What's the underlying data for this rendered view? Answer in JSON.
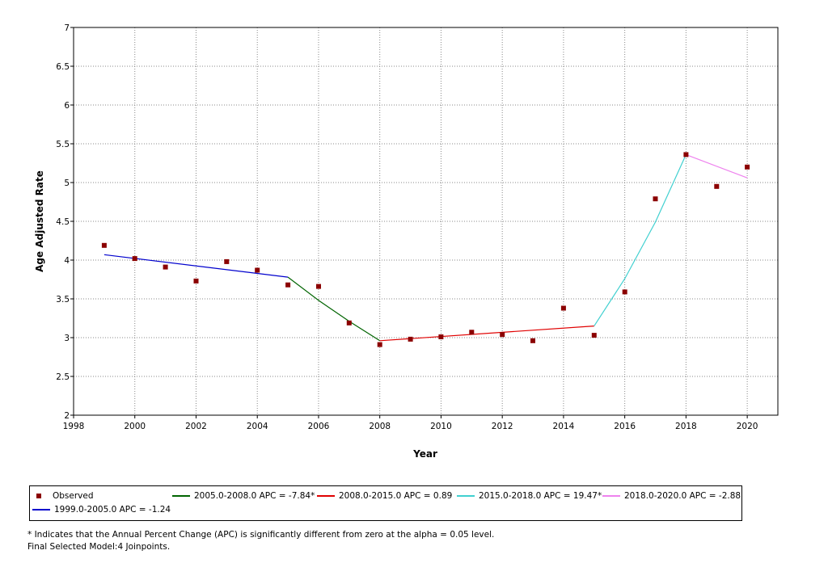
{
  "chart_data": {
    "type": "scatter+line",
    "xlabel": "Year",
    "ylabel": "Age Adjusted Rate",
    "xlim": [
      1998,
      2021
    ],
    "ylim": [
      2,
      7
    ],
    "xticks": [
      1998,
      2000,
      2002,
      2004,
      2006,
      2008,
      2010,
      2012,
      2014,
      2016,
      2018,
      2020
    ],
    "yticks": [
      2,
      2.5,
      3,
      3.5,
      4,
      4.5,
      5,
      5.5,
      6,
      6.5,
      7
    ],
    "observed": {
      "name": "Observed",
      "color": "#8b0000",
      "x": [
        1999,
        2000,
        2001,
        2002,
        2003,
        2004,
        2005,
        2006,
        2007,
        2008,
        2009,
        2010,
        2011,
        2012,
        2013,
        2014,
        2015,
        2016,
        2017,
        2018,
        2019,
        2020
      ],
      "y": [
        4.19,
        4.02,
        3.91,
        3.73,
        3.98,
        3.87,
        3.68,
        3.66,
        3.19,
        2.91,
        2.98,
        3.01,
        3.07,
        3.04,
        2.96,
        3.38,
        3.03,
        3.59,
        4.79,
        5.36,
        4.95,
        5.2
      ]
    },
    "segments": [
      {
        "name": "1999.0-2005.0 APC  =  -1.24",
        "color": "#0000cd",
        "x": [
          1999,
          2005
        ],
        "y": [
          4.07,
          3.78
        ]
      },
      {
        "name": "2005.0-2008.0 APC  =  -7.84*",
        "color": "#006400",
        "x": [
          2005,
          2006,
          2007,
          2008
        ],
        "y": [
          3.78,
          3.48,
          3.21,
          2.96
        ]
      },
      {
        "name": "2008.0-2015.0 APC  =  0.89",
        "color": "#e00000",
        "x": [
          2008,
          2015
        ],
        "y": [
          2.96,
          3.15
        ]
      },
      {
        "name": "2015.0-2018.0 APC  =  19.47*",
        "color": "#40d0d0",
        "x": [
          2015,
          2016,
          2017,
          2018
        ],
        "y": [
          3.15,
          3.76,
          4.49,
          5.36
        ]
      },
      {
        "name": "2018.0-2020.0 APC  =  -2.88",
        "color": "#ee82ee",
        "x": [
          2018,
          2020
        ],
        "y": [
          5.36,
          5.06
        ]
      }
    ]
  },
  "legend": {
    "observed_label": "Observed",
    "seg1_label": "2005.0-2008.0 APC  =  -7.84*",
    "seg2_label": "2008.0-2015.0 APC  =  0.89",
    "seg3_label": "2015.0-2018.0 APC  =  19.47*",
    "seg4_label": "2018.0-2020.0 APC  =  -2.88",
    "seg0_label": "1999.0-2005.0 APC  =  -1.24"
  },
  "notes": {
    "significance": "* Indicates that the Annual Percent Change (APC) is significantly different from zero at the alpha = 0.05 level.",
    "model": "Final Selected Model:4 Joinpoints."
  }
}
